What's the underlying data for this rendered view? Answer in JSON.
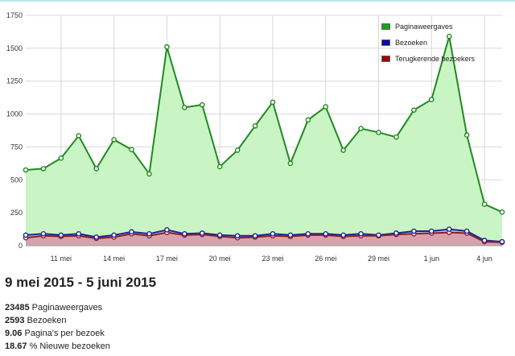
{
  "header": {
    "date_range": "9 mei 2015 - 5 juni 2015"
  },
  "colors": {
    "pageviews_line": "#1f8a1f",
    "pageviews_fill": "#c9f5c4",
    "visits_line": "#1c2494",
    "returning_line": "#8c1d2a",
    "returning_fill": "#d6a3ad",
    "grid": "#d8d8d8"
  },
  "stats": [
    {
      "value": "23485",
      "label": "Paginaweergaves"
    },
    {
      "value": "2593",
      "label": "Bezoeken"
    },
    {
      "value": "9.06",
      "label": "Pagina's per bezoek"
    },
    {
      "value": "18.67",
      "label": "% Nieuwe bezoeken"
    }
  ],
  "chart_data": {
    "type": "area",
    "title": "",
    "xlabel": "",
    "ylabel": "",
    "ylim": [
      0,
      1750
    ],
    "yticks": [
      0,
      250,
      500,
      750,
      1000,
      1250,
      1500,
      1750
    ],
    "grid": true,
    "legend_position": "top-right",
    "x": [
      "9 mei",
      "10 mei",
      "11 mei",
      "12 mei",
      "13 mei",
      "14 mei",
      "15 mei",
      "16 mei",
      "17 mei",
      "18 mei",
      "19 mei",
      "20 mei",
      "21 mei",
      "22 mei",
      "23 mei",
      "24 mei",
      "25 mei",
      "26 mei",
      "27 mei",
      "28 mei",
      "29 mei",
      "30 mei",
      "31 mei",
      "1 jun",
      "2 jun",
      "3 jun",
      "4 jun",
      "5 jun"
    ],
    "xtick_labels": [
      {
        "index": 2,
        "label": "11 mei"
      },
      {
        "index": 5,
        "label": "14 mei"
      },
      {
        "index": 8,
        "label": "17 mei"
      },
      {
        "index": 11,
        "label": "20 mei"
      },
      {
        "index": 14,
        "label": "23 mei"
      },
      {
        "index": 17,
        "label": "26 mei"
      },
      {
        "index": 20,
        "label": "29 mei"
      },
      {
        "index": 23,
        "label": "1 jun"
      },
      {
        "index": 26,
        "label": "4 jun"
      }
    ],
    "series": [
      {
        "name": "Paginaweergaves",
        "values": [
          575,
          585,
          665,
          835,
          585,
          805,
          730,
          545,
          1510,
          1050,
          1070,
          600,
          725,
          910,
          1090,
          625,
          955,
          1055,
          725,
          890,
          860,
          825,
          1030,
          1110,
          1590,
          840,
          315,
          255
        ]
      },
      {
        "name": "Bezoeken",
        "values": [
          80,
          90,
          80,
          90,
          65,
          80,
          105,
          90,
          120,
          90,
          95,
          80,
          75,
          75,
          90,
          80,
          90,
          90,
          80,
          90,
          80,
          95,
          110,
          110,
          125,
          110,
          40,
          30
        ]
      },
      {
        "name": "Terugkerende bezoekers",
        "values": [
          60,
          75,
          70,
          75,
          55,
          65,
          90,
          75,
          100,
          80,
          85,
          70,
          60,
          65,
          75,
          70,
          80,
          80,
          70,
          75,
          75,
          85,
          90,
          95,
          100,
          95,
          30,
          25
        ]
      }
    ]
  }
}
